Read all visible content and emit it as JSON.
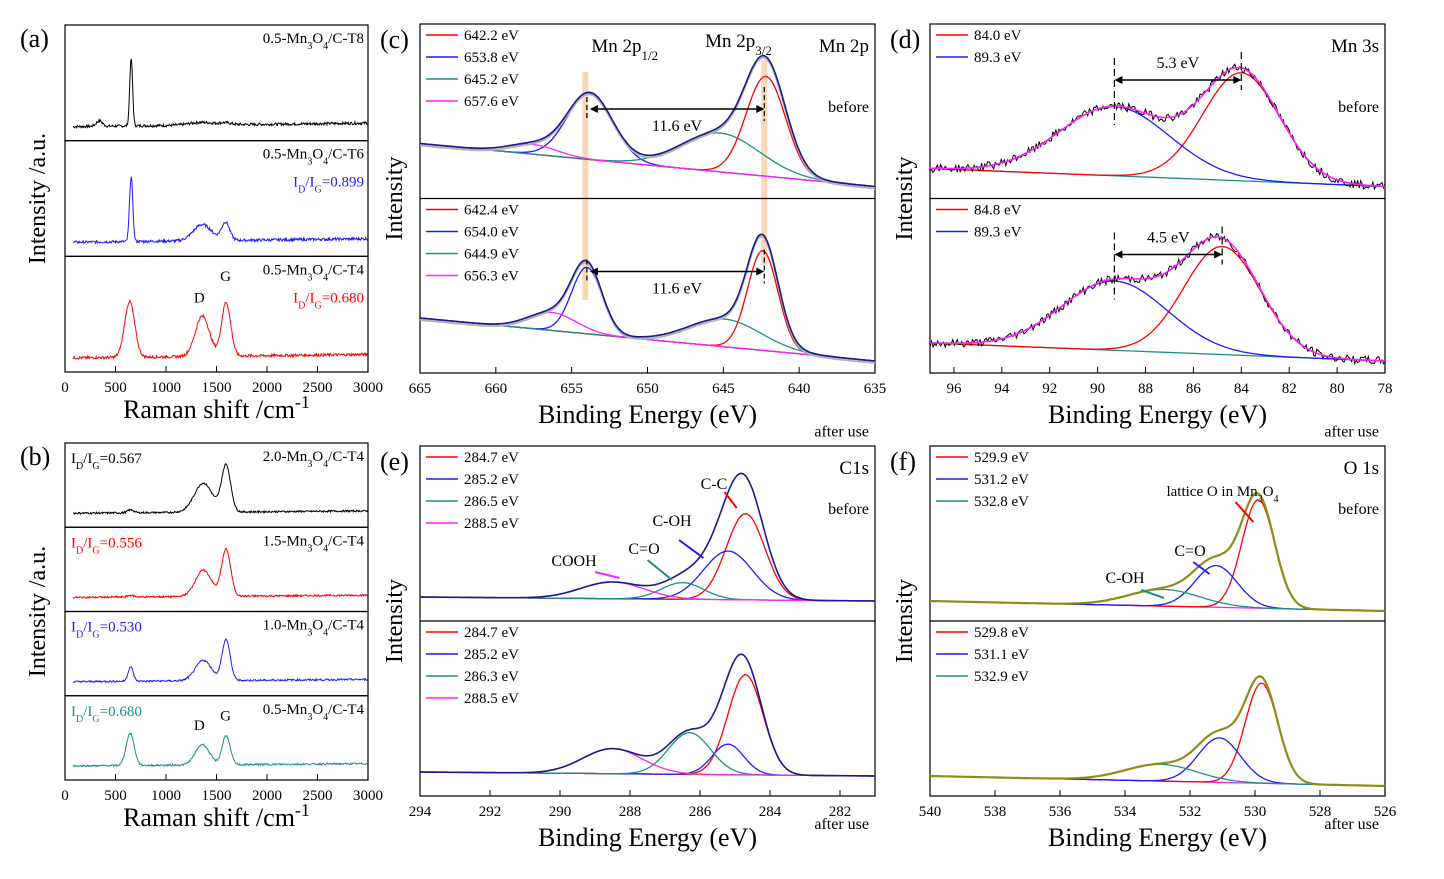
{
  "colors": {
    "black": "#000000",
    "red": "#ff0000",
    "blue": "#1c1cff",
    "navy": "#1a1a8c",
    "teal": "#1f8f86",
    "magenta": "#ff22ff",
    "olive": "#8c8c1a",
    "gray": "#b4b4b4",
    "highlight": "#f5c89a"
  },
  "chart_data": [
    {
      "panel": "(a)",
      "type": "line",
      "xlabel": "Raman shift /cm",
      "xlabel_sup": "-1",
      "ylabel": "Intensity /a.u.",
      "xlim": [
        0,
        3000
      ],
      "xticks": [
        0,
        500,
        1000,
        1500,
        2000,
        2500,
        3000
      ],
      "stacked_panels": [
        {
          "sample": "0.5-Mn3O4/C-T8",
          "ratio_label": "",
          "color": "#000000",
          "peaks": [
            {
              "x": 340,
              "h": 0.06,
              "w": 30
            },
            {
              "x": 655,
              "h": 0.75,
              "w": 14
            },
            {
              "x": 1350,
              "h": 0.03,
              "w": 120
            },
            {
              "x": 1590,
              "h": 0.02,
              "w": 60
            }
          ]
        },
        {
          "sample": "0.5-Mn3O4/C-T6",
          "ratio_label": "0.899",
          "color": "#1c1cff",
          "peaks": [
            {
              "x": 655,
              "h": 0.72,
              "w": 16
            },
            {
              "x": 1360,
              "h": 0.18,
              "w": 90
            },
            {
              "x": 1590,
              "h": 0.2,
              "w": 40
            }
          ]
        },
        {
          "sample": "0.5-Mn3O4/C-T4",
          "ratio_label": "0.680",
          "color": "#ff0000",
          "peaks": [
            {
              "x": 640,
              "h": 0.62,
              "w": 50
            },
            {
              "x": 1360,
              "h": 0.45,
              "w": 70
            },
            {
              "x": 1595,
              "h": 0.6,
              "w": 45
            }
          ]
        }
      ],
      "labels": {
        "D": "D",
        "G": "G"
      }
    },
    {
      "panel": "(b)",
      "type": "line",
      "xlabel": "Raman shift /cm",
      "xlabel_sup": "-1",
      "ylabel": "Intensity /a.u.",
      "xlim": [
        0,
        3000
      ],
      "xticks": [
        0,
        500,
        1000,
        1500,
        2000,
        2500,
        3000
      ],
      "stacked_panels": [
        {
          "sample": "2.0-Mn3O4/C-T4",
          "ratio_label": "0.567",
          "color": "#000000",
          "peaks": [
            {
              "x": 650,
              "h": 0.05,
              "w": 30
            },
            {
              "x": 1370,
              "h": 0.5,
              "w": 90
            },
            {
              "x": 1595,
              "h": 0.8,
              "w": 45
            }
          ]
        },
        {
          "sample": "1.5-Mn3O4/C-T4",
          "ratio_label": "0.556",
          "color": "#ff0000",
          "peaks": [
            {
              "x": 650,
              "h": 0.03,
              "w": 30
            },
            {
              "x": 1370,
              "h": 0.45,
              "w": 80
            },
            {
              "x": 1595,
              "h": 0.8,
              "w": 45
            }
          ]
        },
        {
          "sample": "1.0-Mn3O4/C-T4",
          "ratio_label": "0.530",
          "color": "#1c1cff",
          "peaks": [
            {
              "x": 650,
              "h": 0.25,
              "w": 25
            },
            {
              "x": 1370,
              "h": 0.35,
              "w": 80
            },
            {
              "x": 1595,
              "h": 0.7,
              "w": 40
            }
          ]
        },
        {
          "sample": "0.5-Mn3O4/C-T4",
          "ratio_label": "0.680",
          "color": "#1f8f86",
          "peaks": [
            {
              "x": 645,
              "h": 0.55,
              "w": 40
            },
            {
              "x": 1360,
              "h": 0.35,
              "w": 70
            },
            {
              "x": 1595,
              "h": 0.5,
              "w": 40
            }
          ]
        }
      ],
      "labels": {
        "D": "D",
        "G": "G"
      }
    },
    {
      "panel": "(c)",
      "type": "line",
      "title": "Mn 2p",
      "xlabel": "Binding Energy (eV)",
      "ylabel": "Intensity",
      "xlim": [
        665,
        635
      ],
      "xticks": [
        665,
        660,
        655,
        650,
        645,
        640,
        635
      ],
      "peak_labels": {
        "p12": "Mn 2p",
        "p12_sub": "1/2",
        "p32": "Mn 2p",
        "p32_sub": "3/2"
      },
      "spin_orbit_splitting": "11.6 eV",
      "subpanels": [
        {
          "state": "before",
          "components": [
            {
              "label": "642.2 eV",
              "center": 642.2,
              "h": 0.72,
              "w": 1.3,
              "color": "#ff0000"
            },
            {
              "label": "653.8 eV",
              "center": 653.8,
              "h": 0.48,
              "w": 1.5,
              "color": "#1c1cff"
            },
            {
              "label": "645.2 eV",
              "center": 645.2,
              "h": 0.28,
              "w": 2.6,
              "color": "#1f8f86"
            },
            {
              "label": "657.6 eV",
              "center": 657.6,
              "h": 0.07,
              "w": 1.6,
              "color": "#ff22ff"
            }
          ]
        },
        {
          "state": "after use",
          "components": [
            {
              "label": "642.4 eV",
              "center": 642.4,
              "h": 0.72,
              "w": 1.0,
              "color": "#ff0000"
            },
            {
              "label": "654.0 eV",
              "center": 654.0,
              "h": 0.48,
              "w": 1.0,
              "color": "#1c1cff"
            },
            {
              "label": "644.9 eV",
              "center": 644.9,
              "h": 0.2,
              "w": 2.4,
              "color": "#1f8f86"
            },
            {
              "label": "656.3 eV",
              "center": 656.3,
              "h": 0.13,
              "w": 1.6,
              "color": "#ff22ff"
            }
          ]
        }
      ]
    },
    {
      "panel": "(d)",
      "type": "line",
      "title": "Mn 3s",
      "xlabel": "Binding Energy (eV)",
      "ylabel": "Intensity",
      "xlim": [
        97,
        78
      ],
      "xticks": [
        96,
        94,
        92,
        90,
        88,
        86,
        84,
        82,
        80,
        78
      ],
      "subpanels": [
        {
          "state": "before",
          "splitting": "5.3 eV",
          "components": [
            {
              "label": "84.0 eV",
              "center": 84.0,
              "h": 0.78,
              "w": 1.6,
              "color": "#ff0000"
            },
            {
              "label": "89.3 eV",
              "center": 89.3,
              "h": 0.5,
              "w": 2.3,
              "color": "#1c1cff"
            }
          ]
        },
        {
          "state": "after use",
          "splitting": "4.5 eV",
          "components": [
            {
              "label": "84.8 eV",
              "center": 84.8,
              "h": 0.78,
              "w": 1.6,
              "color": "#ff0000"
            },
            {
              "label": "89.3 eV",
              "center": 89.3,
              "h": 0.5,
              "w": 2.2,
              "color": "#1c1cff"
            }
          ]
        }
      ]
    },
    {
      "panel": "(e)",
      "type": "line",
      "title": "C1s",
      "xlabel": "Binding Energy (eV)",
      "ylabel": "Intensity",
      "xlim": [
        294,
        281
      ],
      "xticks": [
        294,
        292,
        290,
        288,
        286,
        284,
        282
      ],
      "annotations": {
        "cc": "C-C",
        "coh": "C-OH",
        "co": "C=O",
        "cooh": "COOH"
      },
      "subpanels": [
        {
          "state": "before",
          "components": [
            {
              "label": "284.7 eV",
              "center": 284.7,
              "h": 0.62,
              "w": 0.55,
              "color": "#ff0000"
            },
            {
              "label": "285.2 eV",
              "center": 285.2,
              "h": 0.35,
              "w": 0.7,
              "color": "#1c1cff"
            },
            {
              "label": "286.5 eV",
              "center": 286.5,
              "h": 0.12,
              "w": 0.6,
              "color": "#1f8f86"
            },
            {
              "label": "288.5 eV",
              "center": 288.5,
              "h": 0.12,
              "w": 0.9,
              "color": "#ff22ff"
            }
          ]
        },
        {
          "state": "after use",
          "components": [
            {
              "label": "284.7 eV",
              "center": 284.7,
              "h": 0.72,
              "w": 0.5,
              "color": "#ff0000"
            },
            {
              "label": "285.2 eV",
              "center": 285.2,
              "h": 0.22,
              "w": 0.45,
              "color": "#1c1cff"
            },
            {
              "label": "286.3 eV",
              "center": 286.3,
              "h": 0.3,
              "w": 0.6,
              "color": "#1f8f86"
            },
            {
              "label": "288.5 eV",
              "center": 288.5,
              "h": 0.18,
              "w": 0.85,
              "color": "#ff22ff"
            }
          ]
        }
      ]
    },
    {
      "panel": "(f)",
      "type": "line",
      "title": "O 1s",
      "xlabel": "Binding Energy (eV)",
      "ylabel": "Intensity",
      "xlim": [
        540,
        526
      ],
      "xticks": [
        540,
        538,
        536,
        534,
        532,
        530,
        528,
        526
      ],
      "annotations": {
        "lattice": "lattice O in Mn",
        "lattice_sub": "3",
        "lattice_o": "O",
        "lattice_sub2": "4",
        "co": "C=O",
        "coh": "C-OH"
      },
      "subpanels": [
        {
          "state": "before",
          "components": [
            {
              "label": "529.9 eV",
              "center": 529.9,
              "h": 0.78,
              "w": 0.5,
              "color": "#ff0000"
            },
            {
              "label": "531.2 eV",
              "center": 531.2,
              "h": 0.3,
              "w": 0.65,
              "color": "#1c1cff"
            },
            {
              "label": "532.8 eV",
              "center": 532.8,
              "h": 0.12,
              "w": 1.1,
              "color": "#1f8f86"
            }
          ]
        },
        {
          "state": "after use",
          "components": [
            {
              "label": "529.8 eV",
              "center": 529.8,
              "h": 0.72,
              "w": 0.5,
              "color": "#ff0000"
            },
            {
              "label": "531.1 eV",
              "center": 531.1,
              "h": 0.32,
              "w": 0.65,
              "color": "#1c1cff"
            },
            {
              "label": "532.9 eV",
              "center": 532.9,
              "h": 0.12,
              "w": 1.1,
              "color": "#1f8f86"
            }
          ]
        }
      ]
    }
  ]
}
